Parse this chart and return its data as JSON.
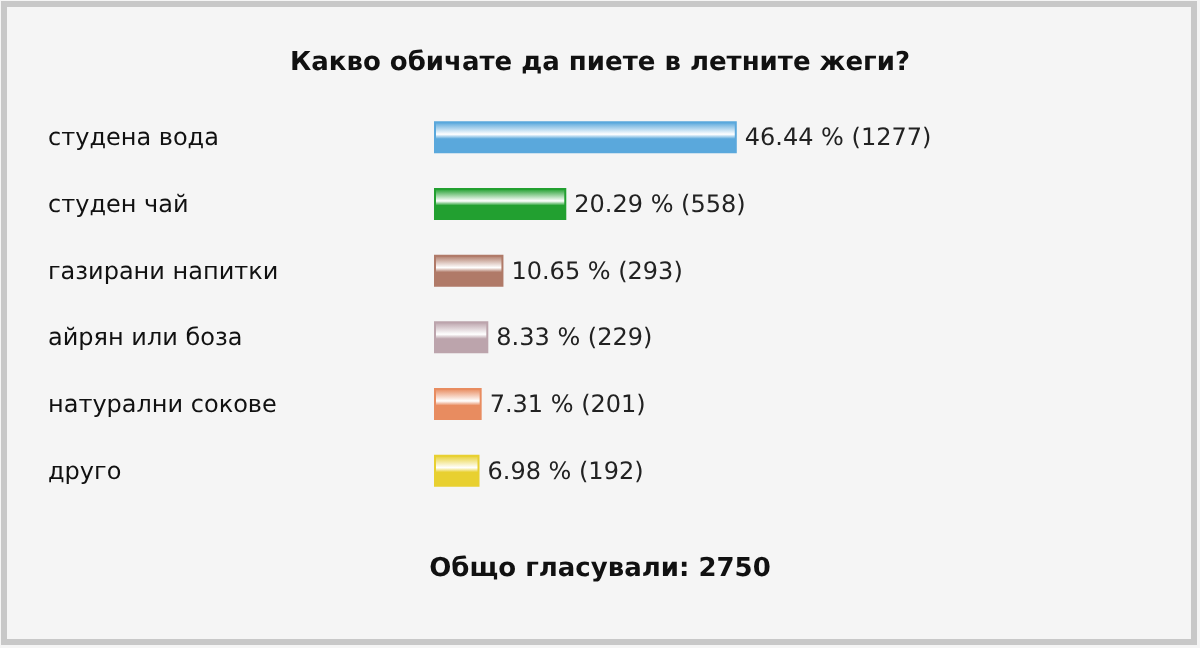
{
  "chart_data": {
    "type": "bar",
    "orientation": "horizontal",
    "title": "Какво обичате да пиете в летните жеги?",
    "categories": [
      "студена вода",
      "студен чай",
      "газирани напитки",
      "айрян или боза",
      "натурални сокове",
      "друго"
    ],
    "values": [
      46.44,
      20.29,
      10.65,
      8.33,
      7.31,
      6.98
    ],
    "colors": [
      "#5aa8dc",
      "#22a030",
      "#b07a68",
      "#bca4ac",
      "#e88c60",
      "#e8d030"
    ],
    "value_labels": [
      "46.44 % (1277)",
      "20.29 % (558)",
      "10.65 % (293)",
      "8.33 % (229)",
      "7.31 % (201)",
      "6.98 % (192)"
    ],
    "tick_labels": "y",
    "annotations": [
      "Общо гласували: 2750"
    ]
  }
}
